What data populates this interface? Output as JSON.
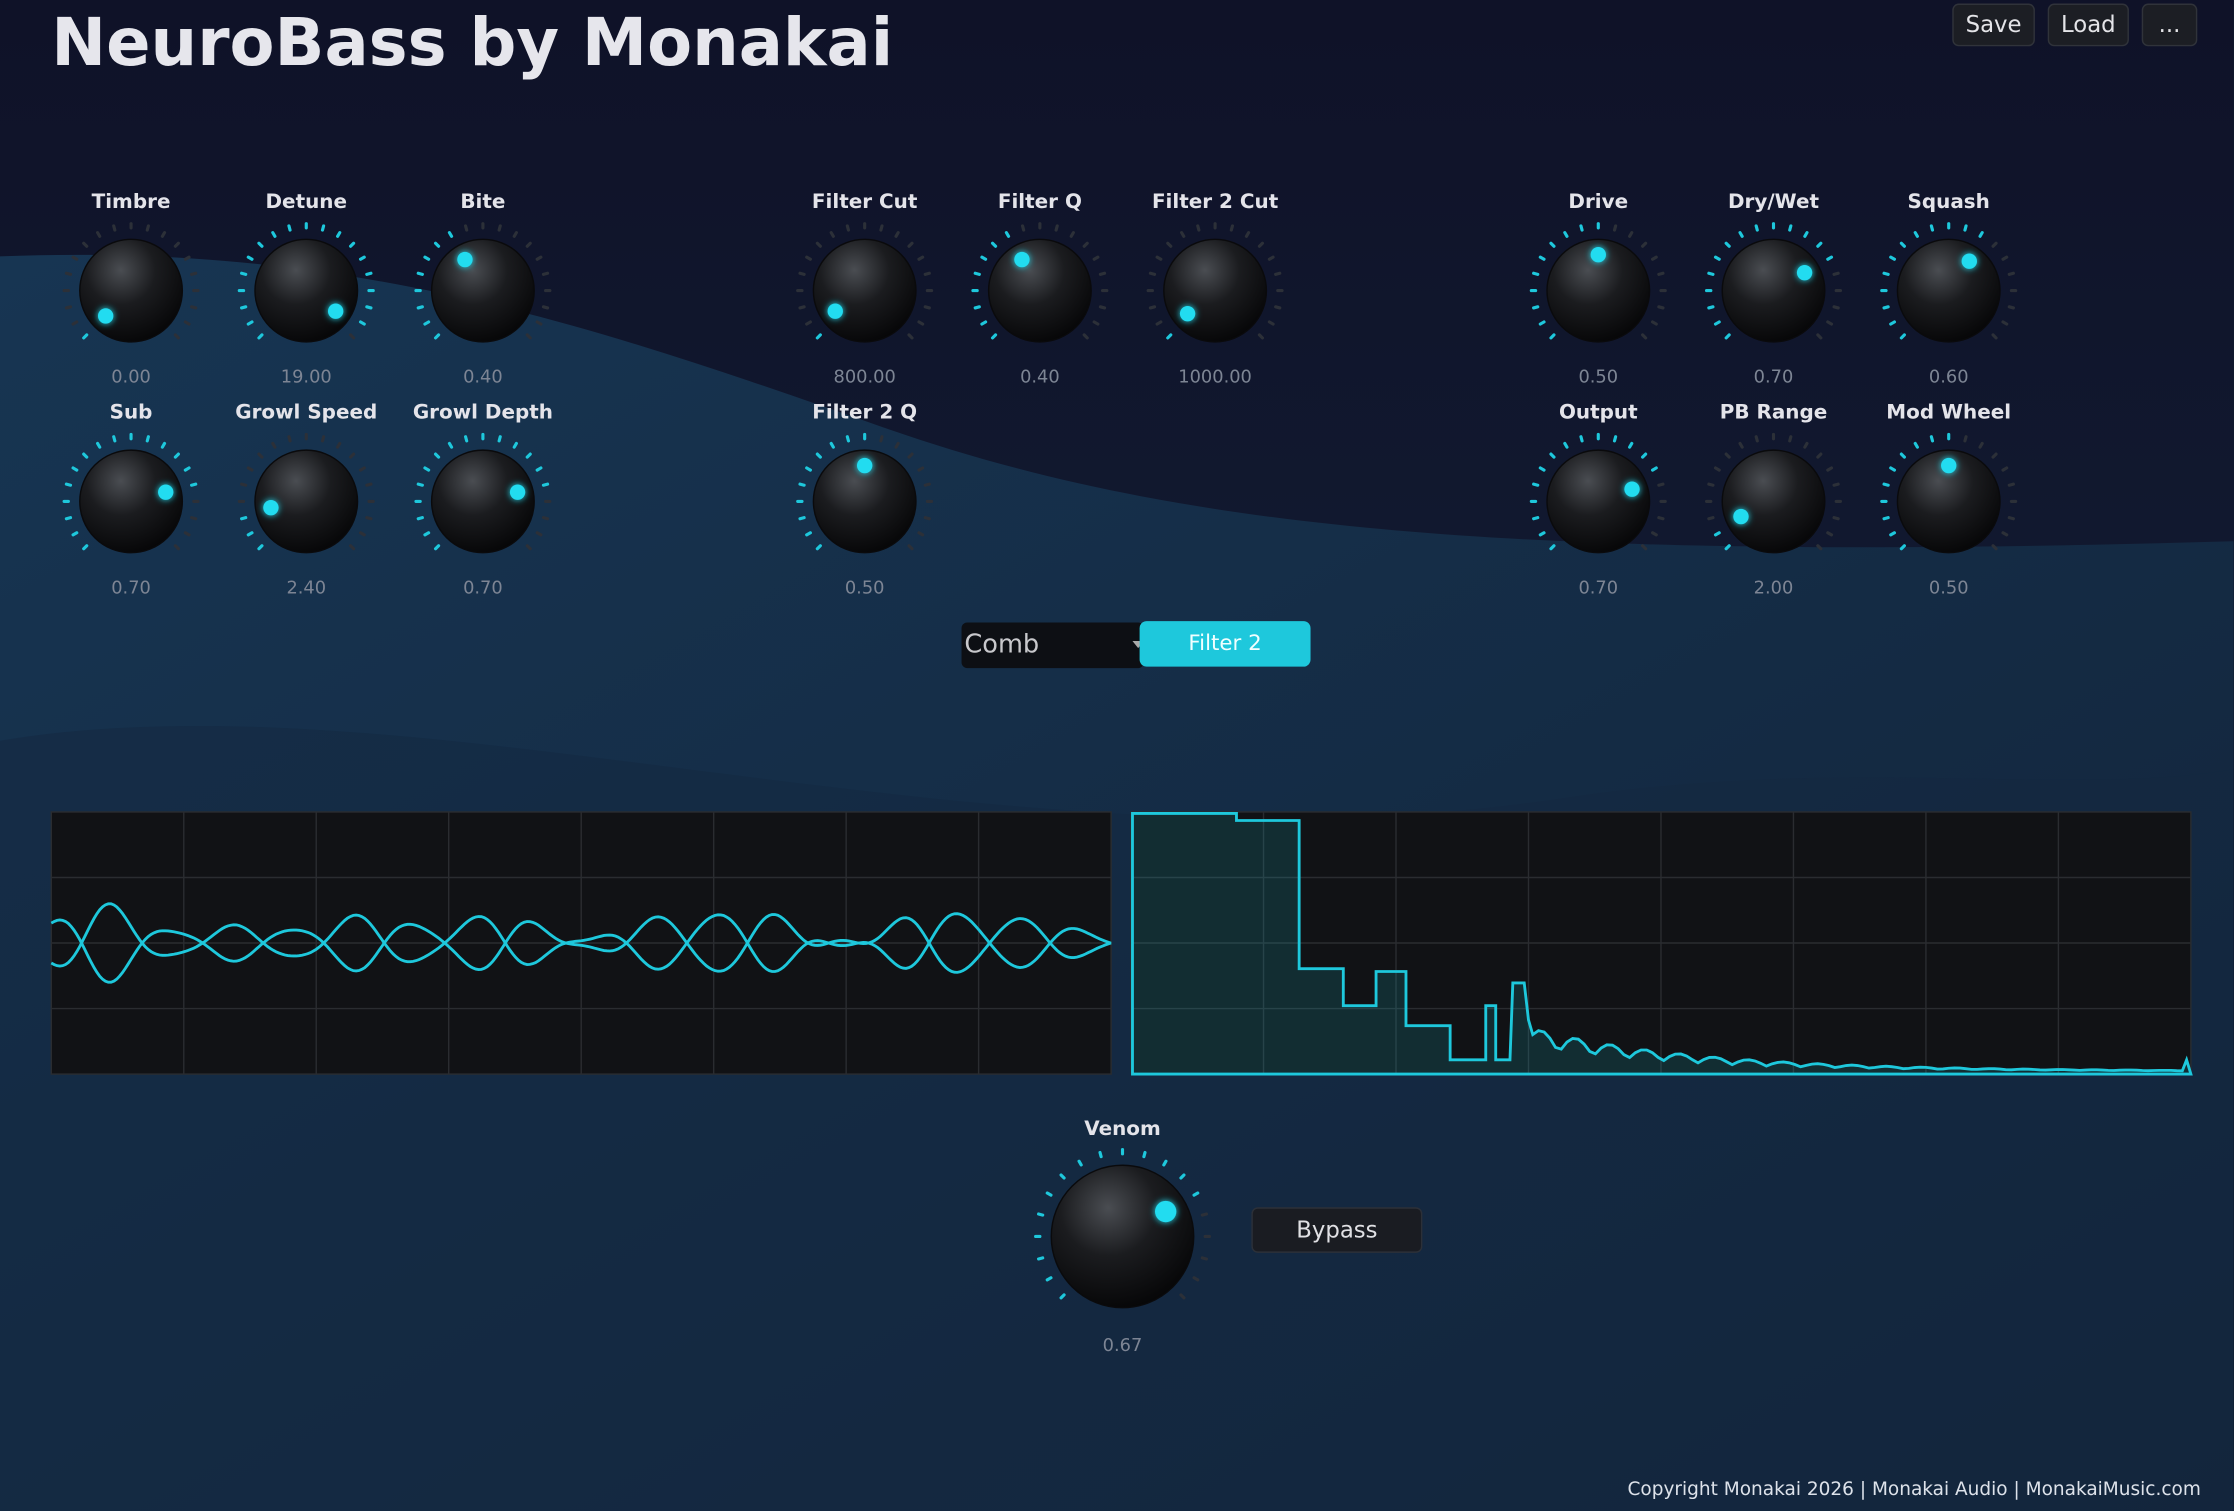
{
  "header": {
    "title": "NeuroBass by Monakai",
    "buttons": [
      "Save",
      "Load",
      "..."
    ]
  },
  "knobs": [
    {
      "label": "Timbre",
      "value": "0.00"
    },
    {
      "label": "Detune",
      "value": "19.00"
    },
    {
      "label": "Bite",
      "value": "0.40"
    },
    {
      "label": "Filter Cut",
      "value": "800.00"
    },
    {
      "label": "Filter Q",
      "value": "0.40"
    },
    {
      "label": "Filter 2 Cut",
      "value": "1000.00"
    },
    {
      "label": "Drive",
      "value": "0.50"
    },
    {
      "label": "Dry/Wet",
      "value": "0.70"
    },
    {
      "label": "Squash",
      "value": "0.60"
    },
    {
      "label": "Sub",
      "value": "0.70"
    },
    {
      "label": "Growl Speed",
      "value": "2.40"
    },
    {
      "label": "Growl Depth",
      "value": "0.70"
    },
    {
      "label": "Filter 2 Q",
      "value": "0.50"
    },
    {
      "label": "Output",
      "value": "0.70"
    },
    {
      "label": "PB Range",
      "value": "2.00"
    },
    {
      "label": "Mod Wheel",
      "value": "0.50"
    }
  ],
  "filter_controls": {
    "mode": "Comb",
    "button": "Filter 2"
  },
  "venom": {
    "label": "Venom",
    "value": "0.67"
  },
  "bypass": "Bypass",
  "footer": "Copyright Monakai 2026 | Monakai Audio | MonakaiMusic.com"
}
